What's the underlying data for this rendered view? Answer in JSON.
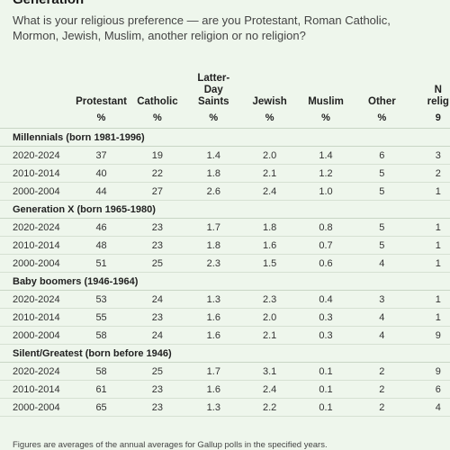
{
  "title": "Generation",
  "question": "What is your religious preference — are you Protestant, Roman Catholic, Mormon, Jewish, Muslim, another religion or no religion?",
  "columns": [
    {
      "line1": "",
      "line2": "",
      "line3": "Protestant",
      "unit": "%"
    },
    {
      "line1": "",
      "line2": "",
      "line3": "Catholic",
      "unit": "%"
    },
    {
      "line1": "Latter-",
      "line2": "Day",
      "line3": "Saints",
      "unit": "%"
    },
    {
      "line1": "",
      "line2": "",
      "line3": "Jewish",
      "unit": "%"
    },
    {
      "line1": "",
      "line2": "",
      "line3": "Muslim",
      "unit": "%"
    },
    {
      "line1": "",
      "line2": "",
      "line3": "Other",
      "unit": "%"
    },
    {
      "line1": "",
      "line2": "N",
      "line3": "relig",
      "unit": "9"
    }
  ],
  "groups": [
    {
      "name": "Millennials (born 1981-1996)",
      "rows": [
        {
          "period": "2020-2024",
          "values": [
            "37",
            "19",
            "1.4",
            "2.0",
            "1.4",
            "6",
            "3"
          ]
        },
        {
          "period": "2010-2014",
          "values": [
            "40",
            "22",
            "1.8",
            "2.1",
            "1.2",
            "5",
            "2"
          ]
        },
        {
          "period": "2000-2004",
          "values": [
            "44",
            "27",
            "2.6",
            "2.4",
            "1.0",
            "5",
            "1"
          ]
        }
      ]
    },
    {
      "name": "Generation X (born 1965-1980)",
      "rows": [
        {
          "period": "2020-2024",
          "values": [
            "46",
            "23",
            "1.7",
            "1.8",
            "0.8",
            "5",
            "1"
          ]
        },
        {
          "period": "2010-2014",
          "values": [
            "48",
            "23",
            "1.8",
            "1.6",
            "0.7",
            "5",
            "1"
          ]
        },
        {
          "period": "2000-2004",
          "values": [
            "51",
            "25",
            "2.3",
            "1.5",
            "0.6",
            "4",
            "1"
          ]
        }
      ]
    },
    {
      "name": "Baby boomers (1946-1964)",
      "rows": [
        {
          "period": "2020-2024",
          "values": [
            "53",
            "24",
            "1.3",
            "2.3",
            "0.4",
            "3",
            "1"
          ]
        },
        {
          "period": "2010-2014",
          "values": [
            "55",
            "23",
            "1.6",
            "2.0",
            "0.3",
            "4",
            "1"
          ]
        },
        {
          "period": "2000-2004",
          "values": [
            "58",
            "24",
            "1.6",
            "2.1",
            "0.3",
            "4",
            "9"
          ]
        }
      ]
    },
    {
      "name": "Silent/Greatest (born before 1946)",
      "rows": [
        {
          "period": "2020-2024",
          "values": [
            "58",
            "25",
            "1.7",
            "3.1",
            "0.1",
            "2",
            "9"
          ]
        },
        {
          "period": "2010-2014",
          "values": [
            "61",
            "23",
            "1.6",
            "2.4",
            "0.1",
            "2",
            "6"
          ]
        },
        {
          "period": "2000-2004",
          "values": [
            "65",
            "23",
            "1.3",
            "2.2",
            "0.1",
            "2",
            "4"
          ]
        }
      ]
    }
  ],
  "footnote": "Figures are averages of the annual averages for Gallup polls in the specified years."
}
